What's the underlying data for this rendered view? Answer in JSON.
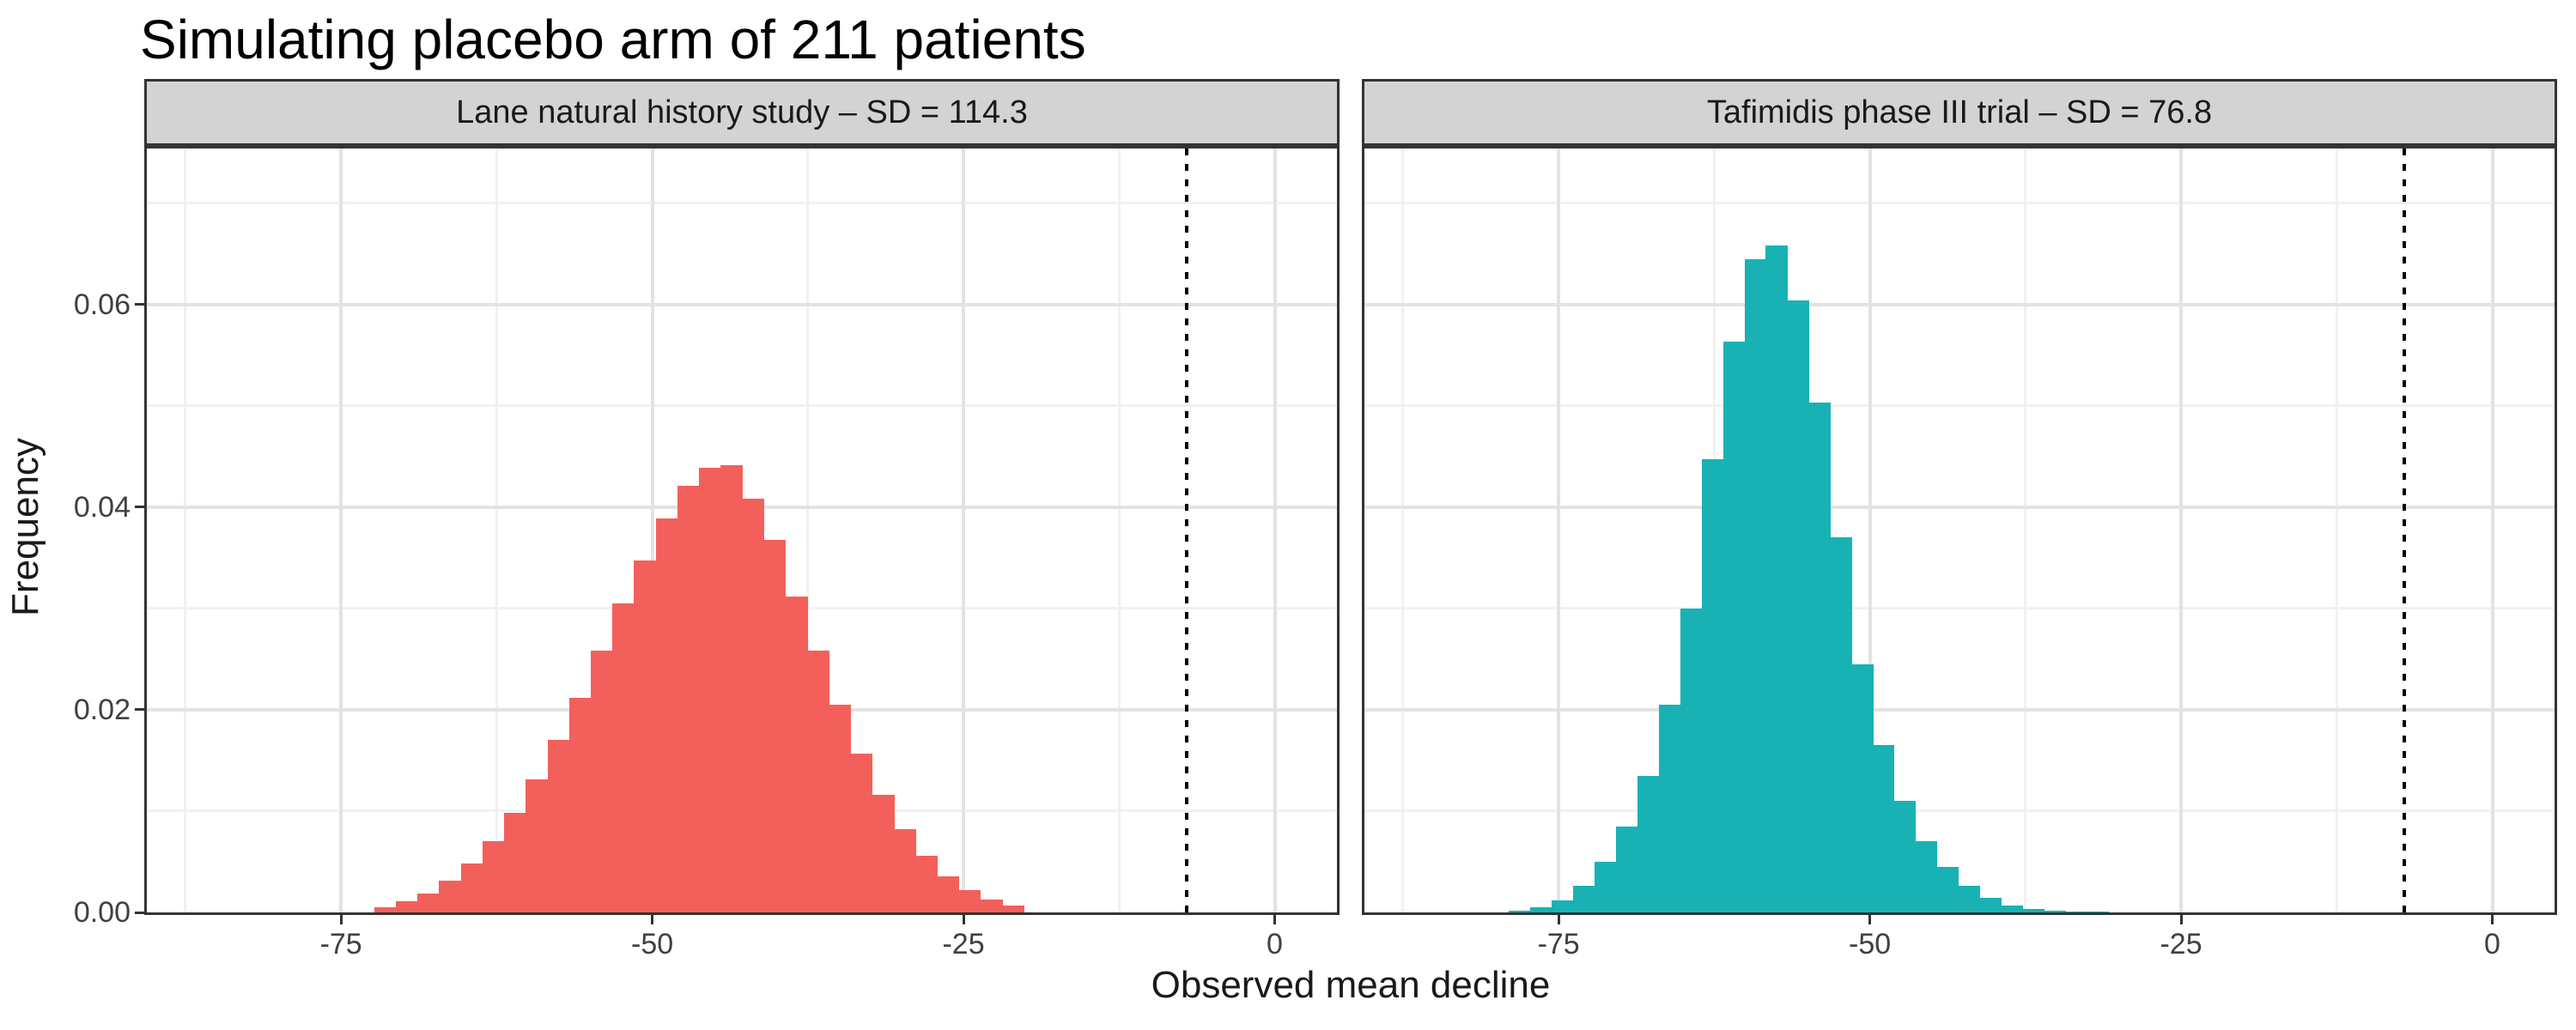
{
  "title": "Simulating placebo arm of 211 patients",
  "axes": {
    "x_label": "Observed mean decline",
    "y_label": "Frequency",
    "x_tick_labels": [
      "-75",
      "-50",
      "-25",
      "0"
    ],
    "x_tick_values": [
      -75,
      -50,
      -25,
      0
    ],
    "x_minor_values": [
      -87.5,
      -62.5,
      -37.5,
      -12.5
    ],
    "y_tick_labels": [
      "0.00",
      "0.02",
      "0.04",
      "0.06"
    ],
    "y_tick_values": [
      0,
      0.02,
      0.04,
      0.06
    ],
    "y_minor_values": [
      0.01,
      0.03,
      0.05,
      0.07
    ],
    "x_domain": [
      -90.6,
      5.0
    ],
    "y_domain": [
      0,
      0.0754
    ],
    "grid": "major and minor, light gray on white",
    "legend": "none"
  },
  "chart_data": [
    {
      "type": "bar",
      "facet_label": "Lane natural history study – SD = 114.3",
      "fill": "#F3605B",
      "bin_start": -72.34,
      "bin_width": 1.74,
      "frequencies": [
        0.0005,
        0.0011,
        0.0019,
        0.0031,
        0.0048,
        0.007,
        0.0098,
        0.0131,
        0.017,
        0.0212,
        0.0258,
        0.0305,
        0.0347,
        0.0389,
        0.0421,
        0.0439,
        0.0441,
        0.0408,
        0.0368,
        0.0312,
        0.0258,
        0.0205,
        0.0157,
        0.0116,
        0.0082,
        0.0056,
        0.0036,
        0.0022,
        0.0013,
        0.0007
      ],
      "vline_x": -7.1
    },
    {
      "type": "bar",
      "facet_label": "Tafimidis phase III trial – SD = 76.8",
      "fill": "#18B2B4",
      "bin_start": -79.0,
      "bin_width": 1.72,
      "frequencies": [
        0.0002,
        0.0005,
        0.0012,
        0.0026,
        0.005,
        0.0085,
        0.0135,
        0.0205,
        0.03,
        0.0447,
        0.0563,
        0.0645,
        0.0658,
        0.0604,
        0.0503,
        0.037,
        0.0245,
        0.0165,
        0.011,
        0.007,
        0.0045,
        0.0026,
        0.0014,
        0.0007,
        0.0003,
        0.0002,
        0.0001,
        0.0001,
        0,
        0
      ],
      "vline_x": -7.1
    }
  ],
  "colors": {
    "background": "#FFFFFF",
    "strip_background": "#D3D3D3",
    "panel_border": "#333333",
    "grid_major": "#E3E3E3",
    "grid_minor": "#F1F1F1",
    "tick_label": "#404040",
    "reference_line": "#000000",
    "series_lane": "#F3605B",
    "series_tafimidis": "#18B2B4"
  }
}
